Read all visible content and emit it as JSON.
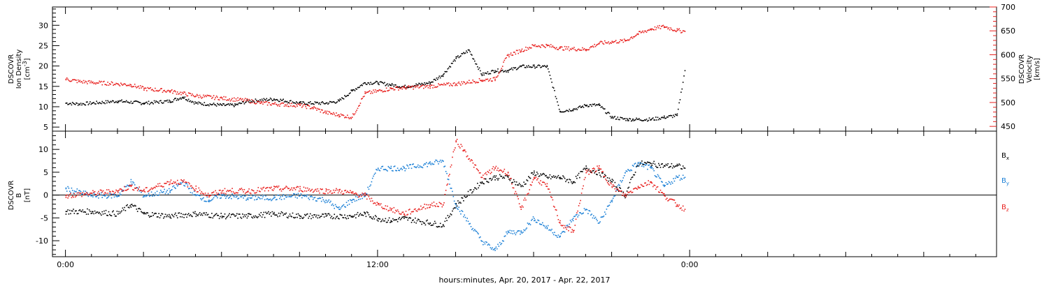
{
  "colors": {
    "black": "#000000",
    "red": "#e8201e",
    "blue": "#1a7fd6"
  },
  "x_axis": {
    "label": "hours:minutes, Apr. 20, 2017 - Apr. 22, 2017",
    "range_hours": [
      -0.5,
      35.8
    ],
    "tick_labels": [
      {
        "hour": 0,
        "label": "0:00"
      },
      {
        "hour": 12,
        "label": "12:00"
      },
      {
        "hour": 24,
        "label": "0:00"
      }
    ]
  },
  "chart_data": [
    {
      "type": "scatter",
      "title": "",
      "xlabel": "",
      "ylabel_left": [
        "DSCOVR",
        "Ion Density",
        "[cm",
        "-3",
        "]"
      ],
      "ylabel_right": [
        "DSCOVR",
        "Velocity",
        "[km/s]"
      ],
      "ylim_left": [
        4,
        34.5
      ],
      "ylim_right": [
        440,
        700
      ],
      "left_ticks": [
        5,
        10,
        15,
        20,
        25,
        30
      ],
      "right_ticks": [
        450,
        500,
        550,
        600,
        650,
        700
      ],
      "series": [
        {
          "color": "#000000",
          "axis": "left",
          "x": [
            0,
            0.5,
            1,
            2,
            3,
            4,
            4.5,
            5,
            6,
            6.5,
            7,
            8,
            9,
            10,
            10.5,
            11,
            11.5,
            12,
            12.5,
            13,
            14,
            14.5,
            15,
            15.5,
            16,
            16.5,
            17,
            17.5,
            18,
            18.5,
            19,
            19.5,
            19.8,
            20,
            20.5,
            21,
            21.6,
            21.8,
            22,
            22.5,
            23,
            23.5,
            23.8
          ],
          "y": [
            11,
            10.8,
            11,
            11.5,
            11,
            11.5,
            12.5,
            11,
            10.5,
            10.5,
            11.5,
            12,
            11,
            11,
            11.5,
            14,
            16,
            16,
            15.5,
            15,
            16,
            18,
            22,
            24,
            18,
            19,
            19,
            20,
            20,
            20,
            9,
            9.5,
            10,
            10.5,
            10.5,
            7.5,
            7,
            7,
            7,
            7,
            7.5,
            8,
            19
          ]
        },
        {
          "color": "#e8201e",
          "axis": "right",
          "x": [
            0,
            0.5,
            1,
            2,
            2.5,
            3,
            4,
            4.5,
            5,
            6,
            7,
            7.5,
            8,
            9,
            9.5,
            10,
            10.5,
            11,
            11.5,
            12,
            12.5,
            13,
            14,
            15,
            16,
            16.5,
            17,
            17.5,
            18,
            18.5,
            19,
            20,
            20.5,
            21,
            21.5,
            22,
            22.5,
            23,
            23.5,
            23.8
          ],
          "y": [
            550,
            545,
            543,
            540,
            538,
            530,
            525,
            520,
            515,
            510,
            505,
            500,
            498,
            495,
            490,
            480,
            475,
            470,
            520,
            525,
            530,
            532,
            535,
            540,
            548,
            550,
            600,
            610,
            620,
            620,
            615,
            612,
            625,
            628,
            630,
            645,
            655,
            660,
            652,
            650
          ]
        }
      ]
    },
    {
      "type": "scatter",
      "title": "",
      "xlabel": "",
      "ylabel_left": [
        "DSCOVR",
        "B",
        "[nT]"
      ],
      "ylim": [
        -13.5,
        14
      ],
      "ticks": [
        -10,
        -5,
        0,
        5,
        10
      ],
      "zero_line": true,
      "legend": {
        "placement": "right",
        "entries": [
          {
            "base": "B",
            "sub": "x",
            "color": "#000000"
          },
          {
            "base": "B",
            "sub": "y",
            "color": "#1a7fd6"
          },
          {
            "base": "B",
            "sub": "z",
            "color": "#e8201e"
          }
        ]
      },
      "series": [
        {
          "name": "Bx",
          "color": "#000000",
          "x": [
            0,
            1,
            2,
            2.5,
            3,
            4,
            5,
            6,
            7,
            8,
            9,
            10,
            11,
            11.5,
            12,
            12.5,
            13,
            14,
            14.5,
            15,
            16,
            16.5,
            17,
            17.5,
            18,
            18.5,
            19,
            19.5,
            20,
            20.5,
            21,
            21.5,
            22,
            22.5,
            23,
            23.5,
            23.8
          ],
          "y": [
            -3.5,
            -3.5,
            -4,
            -2,
            -4,
            -4.5,
            -4,
            -4.5,
            -4.5,
            -4,
            -4.5,
            -4.5,
            -4.5,
            -4,
            -5,
            -5.5,
            -5,
            -6,
            -6.5,
            -2,
            3,
            4,
            4,
            2,
            5,
            4,
            4,
            3,
            6,
            5,
            3,
            0,
            7,
            7,
            6.5,
            6.5,
            6
          ]
        },
        {
          "name": "By",
          "color": "#1a7fd6",
          "x": [
            0,
            1,
            2,
            2.5,
            3,
            4,
            4.5,
            5,
            5.5,
            6,
            7,
            8,
            9,
            10,
            10.5,
            11,
            11.5,
            12,
            12.5,
            13,
            14,
            14.5,
            15,
            16,
            16.5,
            17,
            17.5,
            18,
            18.5,
            19,
            19.5,
            20,
            20.5,
            21,
            21.5,
            22,
            22.5,
            23,
            23.5,
            23.8
          ],
          "y": [
            1.5,
            0,
            0,
            3,
            0,
            1,
            3,
            0,
            -1,
            0,
            -0.5,
            -0.5,
            0,
            -1,
            -3,
            -1,
            0,
            6,
            6,
            6,
            7,
            7.5,
            -2,
            -10,
            -12,
            -8,
            -8,
            -5,
            -7,
            -9,
            -5,
            -3,
            -6,
            -1,
            5,
            7,
            6,
            2,
            4,
            4
          ]
        },
        {
          "name": "Bz",
          "color": "#e8201e",
          "x": [
            0,
            1,
            2,
            2.5,
            3,
            4,
            4.5,
            5,
            5.5,
            6,
            7,
            8,
            9,
            10,
            10.5,
            11,
            11.5,
            12,
            12.5,
            13,
            14,
            14.5,
            15,
            15.3,
            16,
            16.5,
            17,
            17.5,
            18,
            18.5,
            19,
            19.5,
            20,
            20.5,
            21,
            21.5,
            22,
            22.5,
            23,
            23.5,
            23.8
          ],
          "y": [
            0,
            0.5,
            1,
            2,
            1,
            3,
            3,
            1.5,
            0,
            1,
            1,
            1.5,
            1.5,
            1,
            1,
            0.5,
            0,
            -2,
            -3,
            -4,
            -2,
            -2,
            12,
            10,
            4,
            6,
            5,
            -3,
            4,
            2,
            -6,
            -8,
            5,
            6,
            2,
            0,
            2,
            3,
            0,
            -2,
            -3
          ]
        }
      ]
    }
  ]
}
